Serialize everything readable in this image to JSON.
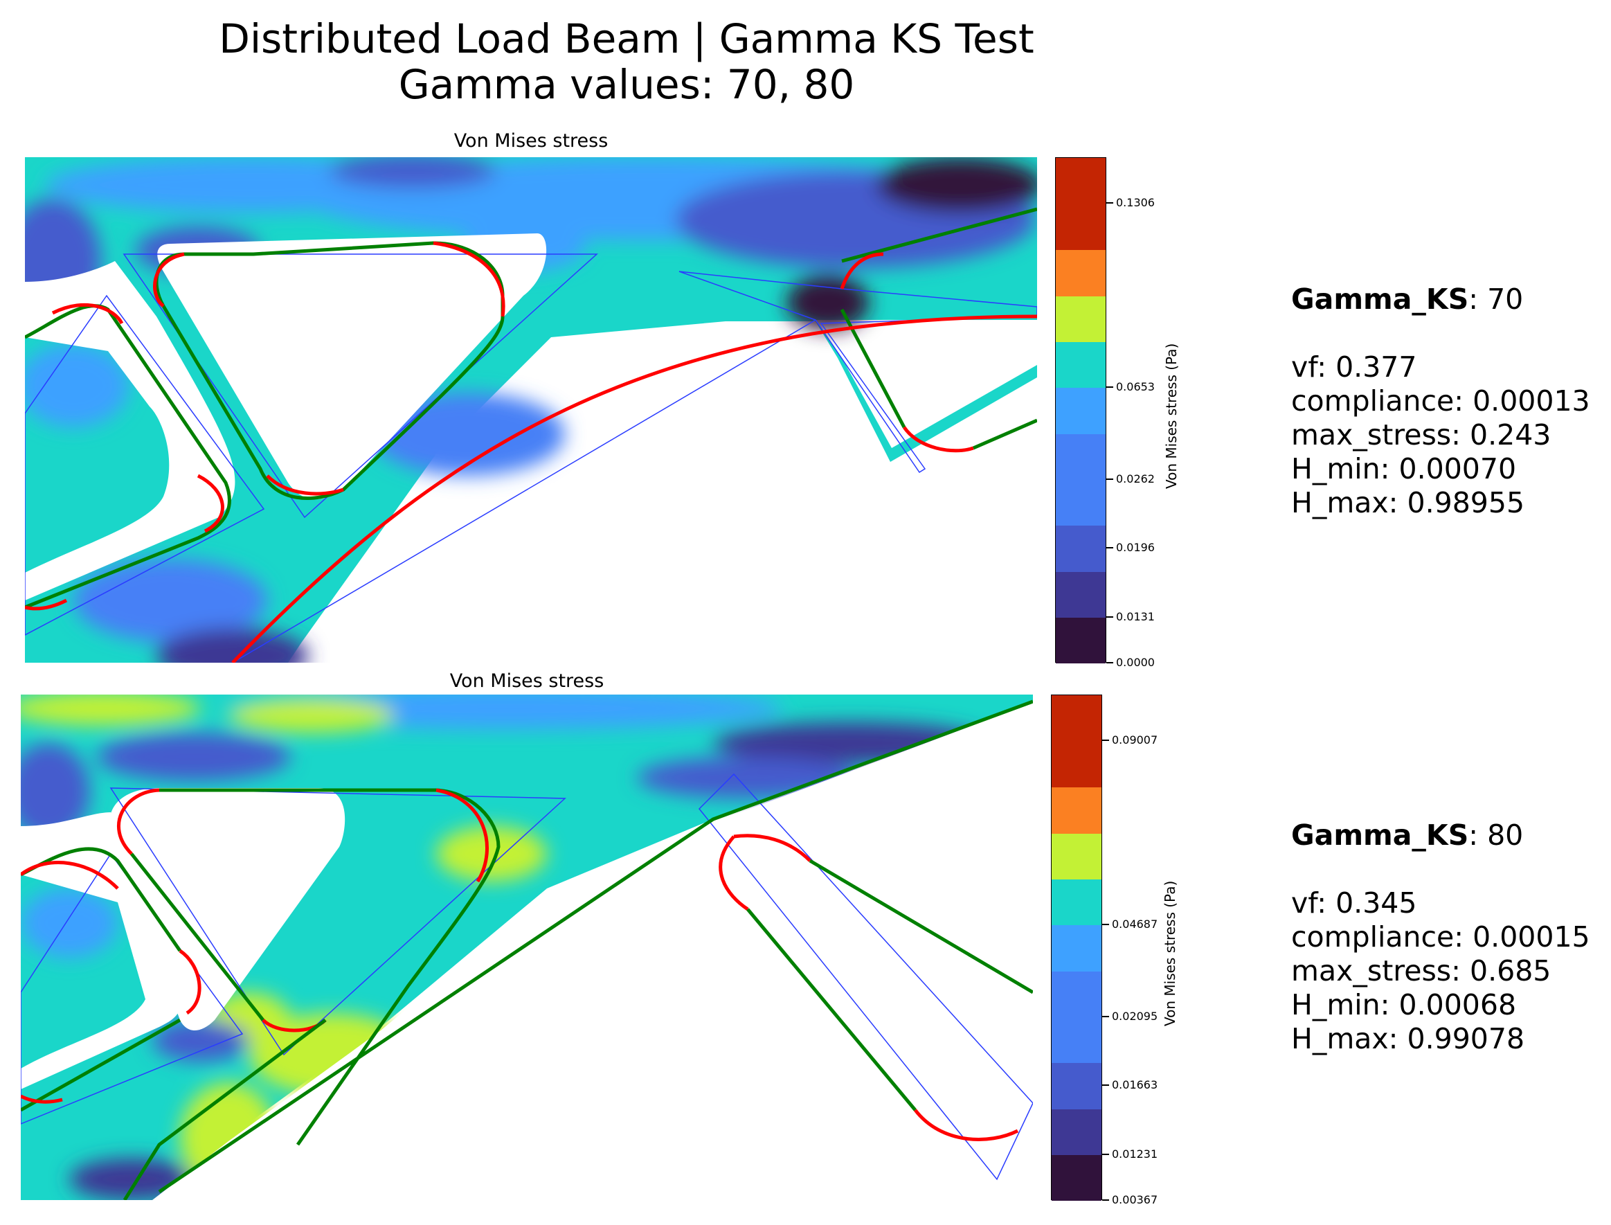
{
  "title": "Distributed Load Beam | Gamma KS Test",
  "subtitle": "Gamma values: 70, 80",
  "colors": {
    "levels": [
      "#30123b",
      "#3e3894",
      "#455bcd",
      "#4680f6",
      "#3ea1ff",
      "#1ad6c9",
      "#c3f135",
      "#fb8022",
      "#c42503"
    ],
    "crack_arc": "#ff0000",
    "crack_line": "#008000",
    "polygon_outline": "#2a3cff"
  },
  "chart_data": [
    {
      "type": "contour",
      "title": "Von Mises stress",
      "colorbar_label": "Von Mises stress (Pa)",
      "colorbar_ticks": [
        "0.0000",
        "0.0131",
        "0.0196",
        "0.0262",
        "0.0653",
        "0.1306"
      ],
      "colorbar_levels": 11,
      "info": {
        "gamma_label": "Gamma_KS",
        "gamma_value": "70",
        "vf": "vf: 0.377",
        "compliance": "compliance: 0.00013",
        "max_stress": "max_stress: 0.243",
        "h_min": "H_min: 0.00070",
        "h_max": "H_max: 0.98955"
      }
    },
    {
      "type": "contour",
      "title": "Von Mises stress",
      "colorbar_label": "Von Mises stress (Pa)",
      "colorbar_ticks": [
        "0.00367",
        "0.01231",
        "0.01663",
        "0.02095",
        "0.04687",
        "0.09007"
      ],
      "colorbar_levels": 11,
      "info": {
        "gamma_label": "Gamma_KS",
        "gamma_value": "80",
        "vf": "vf: 0.345",
        "compliance": "compliance: 0.00015",
        "max_stress": "max_stress: 0.685",
        "h_min": "H_min: 0.00068",
        "h_max": "H_max: 0.99078"
      }
    }
  ]
}
